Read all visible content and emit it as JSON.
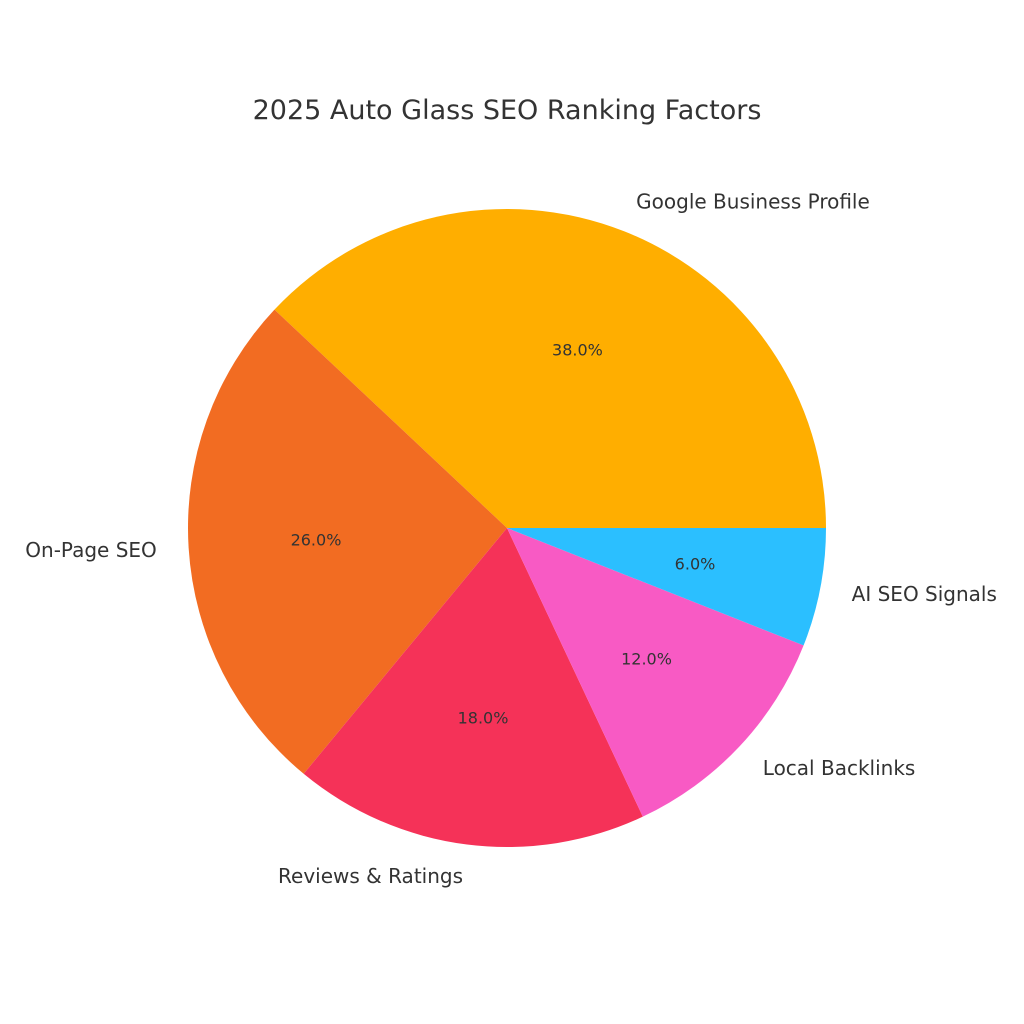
{
  "chart_data": {
    "type": "pie",
    "title": "2025 Auto Glass SEO Ranking Factors",
    "start": "right",
    "direction": "counterclockwise",
    "slices": [
      {
        "label": "Google Business Profile",
        "value": 38.0,
        "value_label": "38.0%",
        "color": "#FFAE00"
      },
      {
        "label": "On-Page SEO",
        "value": 26.0,
        "value_label": "26.0%",
        "color": "#F26C22"
      },
      {
        "label": "Reviews & Ratings",
        "value": 18.0,
        "value_label": "18.0%",
        "color": "#F53258"
      },
      {
        "label": "Local Backlinks",
        "value": 12.0,
        "value_label": "12.0%",
        "color": "#F85AC4"
      },
      {
        "label": "AI SEO Signals",
        "value": 6.0,
        "value_label": "6.0%",
        "color": "#2BBFFF"
      }
    ]
  }
}
